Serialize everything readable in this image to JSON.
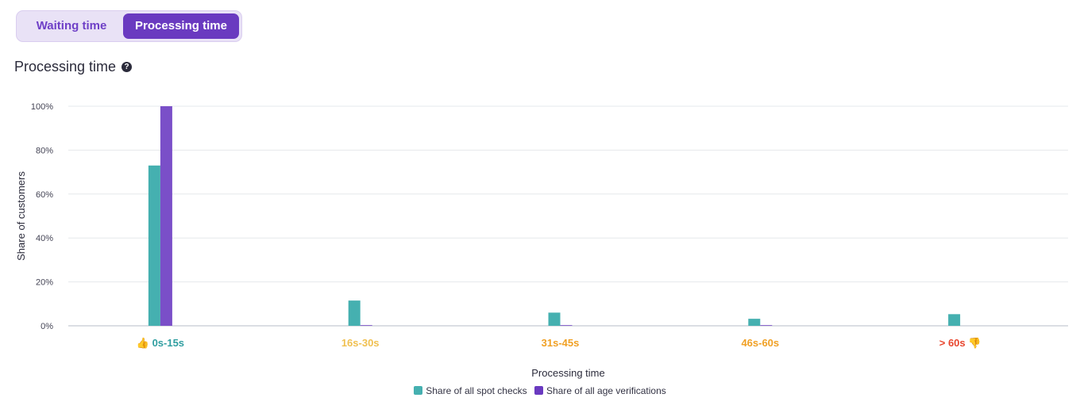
{
  "toggle": {
    "options": [
      "Waiting time",
      "Processing time"
    ],
    "selected": "Processing time"
  },
  "section": {
    "title": "Processing time",
    "help_icon": "question-circle-icon"
  },
  "colors": {
    "accent": "#6a3ac0",
    "spot_checks": "#45b0b0",
    "age_verifications": "#7a4fc8",
    "good": "#2f9ea0",
    "mid": "#f0b83a",
    "warn": "#f0a024",
    "bad": "#e8472f"
  },
  "chart_data": {
    "type": "bar",
    "categories": [
      "0s-15s",
      "16s-30s",
      "31s-45s",
      "46s-60s",
      "> 60s"
    ],
    "category_icons": [
      "thumbs-up-icon",
      "",
      "",
      "",
      "thumbs-down-icon"
    ],
    "category_colors": [
      "#2f9ea0",
      "#f0c050",
      "#f0a024",
      "#f0a024",
      "#e8472f"
    ],
    "series": [
      {
        "name": "Share of all spot checks",
        "color": "#45b0b0",
        "values": [
          73,
          11.5,
          6,
          3.2,
          5.3
        ]
      },
      {
        "name": "Share of all age verifications",
        "color": "#7a4fc8",
        "values": [
          100,
          0.3,
          0.3,
          0.3,
          0
        ]
      }
    ],
    "title": "Processing time",
    "xlabel": "Processing time",
    "ylabel": "Share of customers",
    "ylim": [
      0,
      100
    ],
    "yticks": [
      0,
      20,
      40,
      60,
      80,
      100
    ],
    "ytick_labels": [
      "0%",
      "20%",
      "40%",
      "60%",
      "80%",
      "100%"
    ],
    "grid": true,
    "legend_position": "bottom-center"
  }
}
